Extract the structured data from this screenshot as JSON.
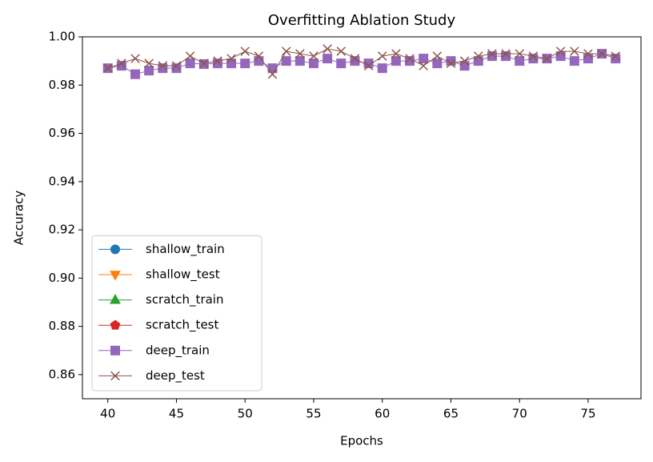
{
  "chart_data": {
    "type": "line",
    "title": "Overfitting Ablation Study",
    "xlabel": "Epochs",
    "ylabel": "Accuracy",
    "x": [
      40,
      41,
      42,
      43,
      44,
      45,
      46,
      47,
      48,
      49,
      50,
      51,
      52,
      53,
      54,
      55,
      56,
      57,
      58,
      59,
      60,
      61,
      62,
      63,
      64,
      65,
      66,
      67,
      68,
      69,
      70,
      71,
      72,
      73,
      74,
      75,
      76,
      77
    ],
    "series": [
      {
        "name": "shallow_train",
        "color": "#1f77b4",
        "marker": "circle",
        "values": [
          null,
          null,
          null,
          null,
          null,
          null,
          null,
          null,
          null,
          null,
          null,
          null,
          null,
          null,
          null,
          null,
          null,
          null,
          null,
          null,
          null,
          null,
          null,
          null,
          null,
          null,
          null,
          null,
          null,
          null,
          null,
          null,
          null,
          null,
          null,
          null,
          null,
          null
        ]
      },
      {
        "name": "shallow_test",
        "color": "#ff7f0e",
        "marker": "triangle-down",
        "values": [
          null,
          null,
          null,
          null,
          null,
          null,
          null,
          null,
          null,
          null,
          null,
          null,
          null,
          null,
          null,
          null,
          null,
          null,
          null,
          null,
          null,
          null,
          null,
          null,
          null,
          null,
          null,
          null,
          null,
          null,
          null,
          null,
          null,
          null,
          null,
          null,
          null,
          null
        ]
      },
      {
        "name": "scratch_train",
        "color": "#2ca02c",
        "marker": "triangle-up",
        "values": [
          null,
          null,
          null,
          null,
          null,
          null,
          null,
          null,
          null,
          null,
          null,
          null,
          null,
          null,
          null,
          null,
          null,
          null,
          null,
          null,
          null,
          null,
          null,
          null,
          null,
          null,
          null,
          null,
          null,
          null,
          null,
          null,
          null,
          null,
          null,
          null,
          null,
          null
        ]
      },
      {
        "name": "scratch_test",
        "color": "#d62728",
        "marker": "pentagon",
        "values": [
          null,
          null,
          null,
          null,
          null,
          null,
          null,
          null,
          null,
          null,
          null,
          null,
          null,
          null,
          null,
          null,
          null,
          null,
          null,
          null,
          null,
          null,
          null,
          null,
          null,
          null,
          null,
          null,
          null,
          null,
          null,
          null,
          null,
          null,
          null,
          null,
          null,
          null
        ]
      },
      {
        "name": "deep_train",
        "color": "#9467bd",
        "marker": "square",
        "values": [
          0.987,
          0.988,
          0.9845,
          0.986,
          0.987,
          0.987,
          0.989,
          0.9887,
          0.989,
          0.989,
          0.989,
          0.99,
          0.987,
          0.99,
          0.99,
          0.989,
          0.991,
          0.989,
          0.99,
          0.989,
          0.987,
          0.99,
          0.99,
          0.991,
          0.989,
          0.99,
          0.988,
          0.99,
          0.992,
          0.992,
          0.99,
          0.991,
          0.991,
          0.992,
          0.99,
          0.991,
          0.993,
          0.991
        ]
      },
      {
        "name": "deep_test",
        "color": "#8c564b",
        "marker": "x",
        "values": [
          0.987,
          0.989,
          0.991,
          0.989,
          0.988,
          0.988,
          0.992,
          0.989,
          0.99,
          0.991,
          0.994,
          0.992,
          0.9845,
          0.994,
          0.993,
          0.992,
          0.995,
          0.994,
          0.991,
          0.988,
          0.992,
          0.993,
          0.991,
          0.988,
          0.992,
          0.989,
          0.99,
          0.992,
          0.993,
          0.993,
          0.993,
          0.992,
          0.991,
          0.994,
          0.994,
          0.993,
          0.993,
          0.992
        ]
      }
    ],
    "xlim": [
      38.15,
      78.85
    ],
    "xticks": [
      40,
      45,
      50,
      55,
      60,
      65,
      70,
      75
    ],
    "ylim": [
      0.85,
      1.0
    ],
    "yticks": [
      {
        "value": 0.86,
        "label": "0.86"
      },
      {
        "value": 0.88,
        "label": "0.88"
      },
      {
        "value": 0.9,
        "label": "0.90"
      },
      {
        "value": 0.92,
        "label": "0.92"
      },
      {
        "value": 0.94,
        "label": "0.94"
      },
      {
        "value": 0.96,
        "label": "0.96"
      },
      {
        "value": 0.98,
        "label": "0.98"
      },
      {
        "value": 1.0,
        "label": "1.00"
      }
    ],
    "legend": "lower left",
    "grid": false
  }
}
